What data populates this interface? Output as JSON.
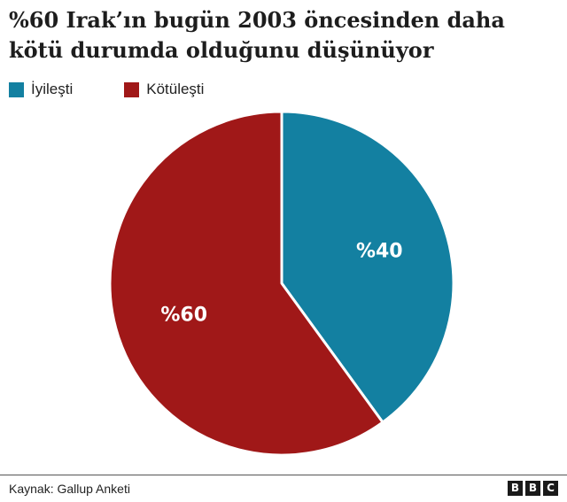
{
  "title": "%60 Irak’ın bugün 2003 öncesinden daha kötü durumda olduğunu düşünüyor",
  "legend": [
    {
      "label": "İyileşti",
      "color": "#1380a1"
    },
    {
      "label": "Kötüleşti",
      "color": "#a01818"
    }
  ],
  "source": "Kaynak: Gallup Anketi",
  "logo": {
    "letters": [
      "B",
      "B",
      "C"
    ]
  },
  "chart_data": {
    "type": "pie",
    "title": "%60 Irak’ın bugün 2003 öncesinden daha kötü durumda olduğunu düşünüyor",
    "slices": [
      {
        "name": "İyileşti",
        "value": 40,
        "label": "%40",
        "color": "#1380a1"
      },
      {
        "name": "Kötüleşti",
        "value": 60,
        "label": "%60",
        "color": "#a01818"
      }
    ],
    "legend_position": "top-left",
    "start": "12 o'clock, clockwise"
  }
}
